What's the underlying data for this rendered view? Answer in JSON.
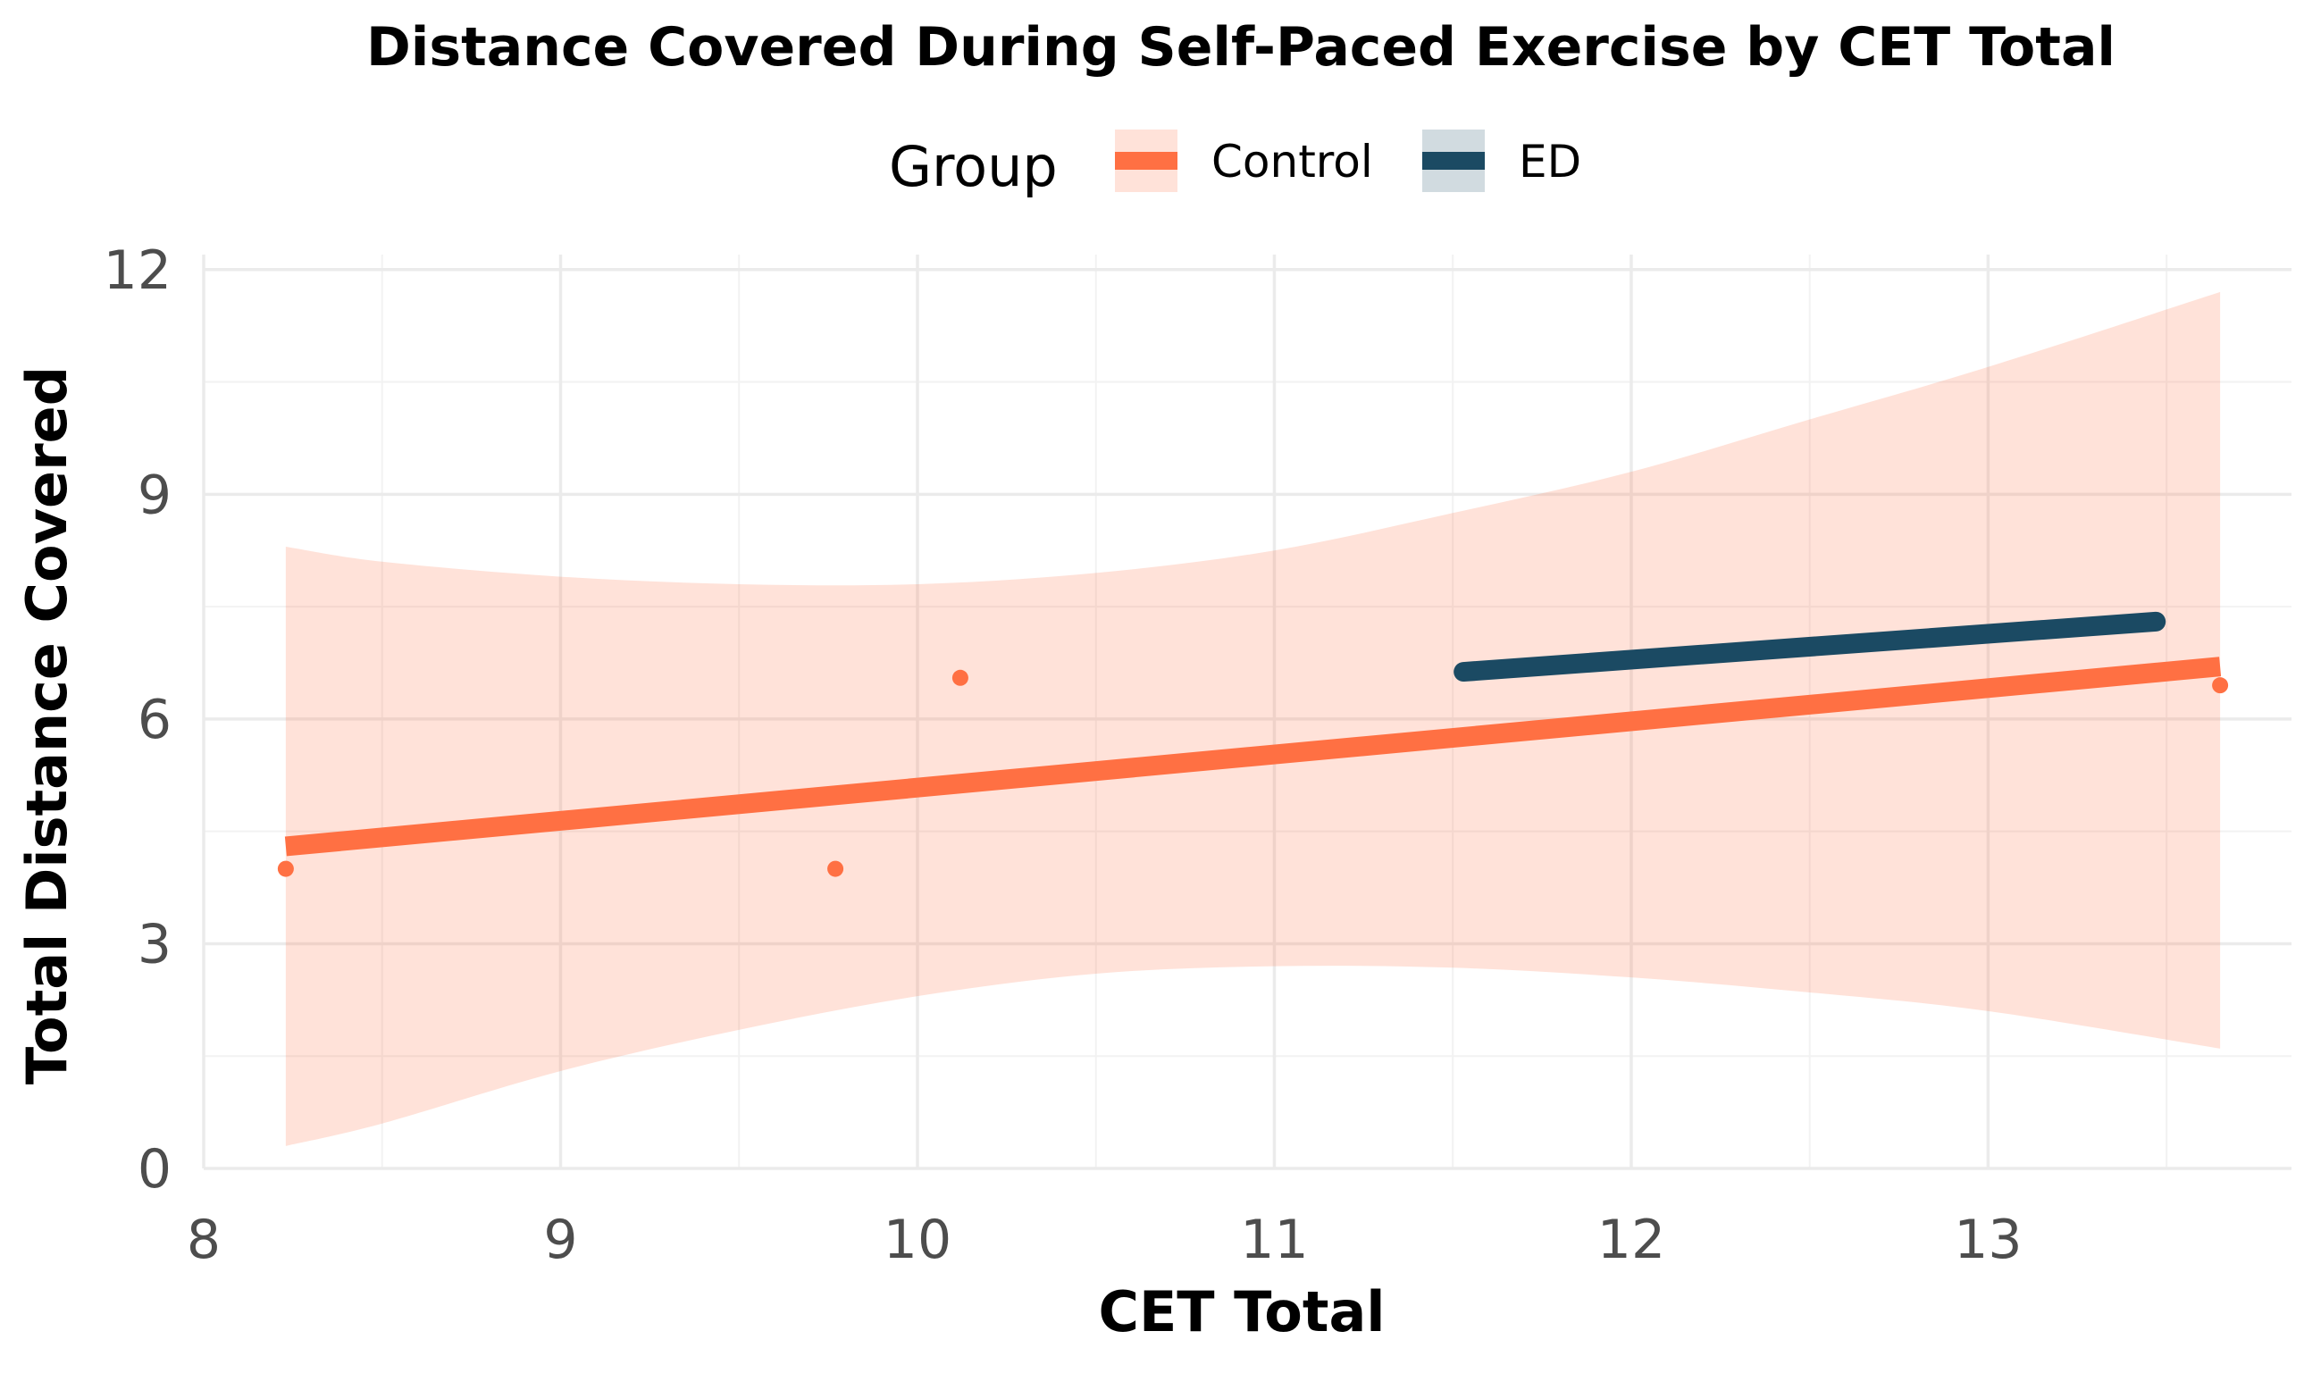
{
  "chart_data": {
    "type": "scatter",
    "title": "Distance Covered During Self-Paced Exercise by CET Total",
    "xlabel": "CET Total",
    "ylabel": "Total Distance Covered",
    "xlim": [
      8,
      13.85
    ],
    "ylim": [
      0,
      12.2
    ],
    "x_ticks": [
      8,
      9,
      10,
      11,
      12,
      13
    ],
    "y_ticks": [
      0,
      3,
      6,
      9,
      12
    ],
    "grid": true,
    "legend": {
      "title": "Group",
      "position": "top",
      "entries": [
        "Control",
        "ED"
      ]
    },
    "series": [
      {
        "name": "Control",
        "color": "#FF7043",
        "points": [
          {
            "x": 8.23,
            "y": 4.0
          },
          {
            "x": 9.77,
            "y": 4.0
          },
          {
            "x": 10.12,
            "y": 6.55
          },
          {
            "x": 13.65,
            "y": 6.45
          }
        ],
        "fit_line": [
          [
            8.23,
            4.3
          ],
          [
            13.65,
            6.7
          ]
        ],
        "confidence_band": {
          "x": [
            8.23,
            8.5,
            9,
            9.5,
            10,
            10.5,
            11,
            11.5,
            12,
            12.5,
            13,
            13.65
          ],
          "upper": [
            8.3,
            8.1,
            7.9,
            7.8,
            7.8,
            7.95,
            8.25,
            8.75,
            9.3,
            10.0,
            10.7,
            11.7
          ],
          "lower": [
            0.3,
            0.6,
            1.3,
            1.85,
            2.3,
            2.6,
            2.7,
            2.68,
            2.55,
            2.35,
            2.1,
            1.6
          ]
        }
      },
      {
        "name": "ED",
        "color": "#1B4A63",
        "points": [],
        "fit_line": [
          [
            11.53,
            6.63
          ],
          [
            13.47,
            7.3
          ]
        ]
      }
    ]
  }
}
